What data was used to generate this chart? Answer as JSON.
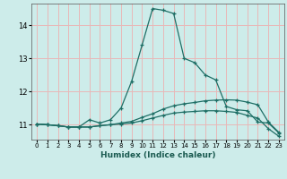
{
  "title": "",
  "xlabel": "Humidex (Indice chaleur)",
  "background_color": "#cdecea",
  "grid_color": "#e8b8b8",
  "line_color": "#1e6e65",
  "xlim": [
    -0.5,
    23.5
  ],
  "ylim": [
    10.55,
    14.65
  ],
  "yticks": [
    11,
    12,
    13,
    14
  ],
  "xticks": [
    0,
    1,
    2,
    3,
    4,
    5,
    6,
    7,
    8,
    9,
    10,
    11,
    12,
    13,
    14,
    15,
    16,
    17,
    18,
    19,
    20,
    21,
    22,
    23
  ],
  "line1_x": [
    0,
    1,
    2,
    3,
    4,
    5,
    6,
    7,
    8,
    9,
    10,
    11,
    12,
    13,
    14,
    15,
    16,
    17,
    18,
    19,
    20,
    21,
    22,
    23
  ],
  "line1_y": [
    11.02,
    11.0,
    10.97,
    10.93,
    10.93,
    11.15,
    11.05,
    11.15,
    11.5,
    12.3,
    13.4,
    14.5,
    14.45,
    14.35,
    13.0,
    12.87,
    12.5,
    12.35,
    11.55,
    11.45,
    11.42,
    11.08,
    11.05,
    10.75
  ],
  "line2_x": [
    0,
    1,
    2,
    3,
    4,
    5,
    6,
    7,
    8,
    9,
    10,
    11,
    12,
    13,
    14,
    15,
    16,
    17,
    18,
    19,
    20,
    21,
    22,
    23
  ],
  "line2_y": [
    11.02,
    11.0,
    10.97,
    10.93,
    10.93,
    10.93,
    10.97,
    11.0,
    11.05,
    11.1,
    11.22,
    11.33,
    11.47,
    11.57,
    11.63,
    11.67,
    11.72,
    11.74,
    11.75,
    11.74,
    11.68,
    11.6,
    11.08,
    10.77
  ],
  "line3_x": [
    0,
    1,
    2,
    3,
    4,
    5,
    6,
    7,
    8,
    9,
    10,
    11,
    12,
    13,
    14,
    15,
    16,
    17,
    18,
    19,
    20,
    21,
    22,
    23
  ],
  "line3_y": [
    11.02,
    11.0,
    10.97,
    10.93,
    10.93,
    10.93,
    10.97,
    11.0,
    11.02,
    11.05,
    11.12,
    11.2,
    11.28,
    11.35,
    11.38,
    11.4,
    11.42,
    11.42,
    11.4,
    11.37,
    11.28,
    11.2,
    10.88,
    10.65
  ]
}
